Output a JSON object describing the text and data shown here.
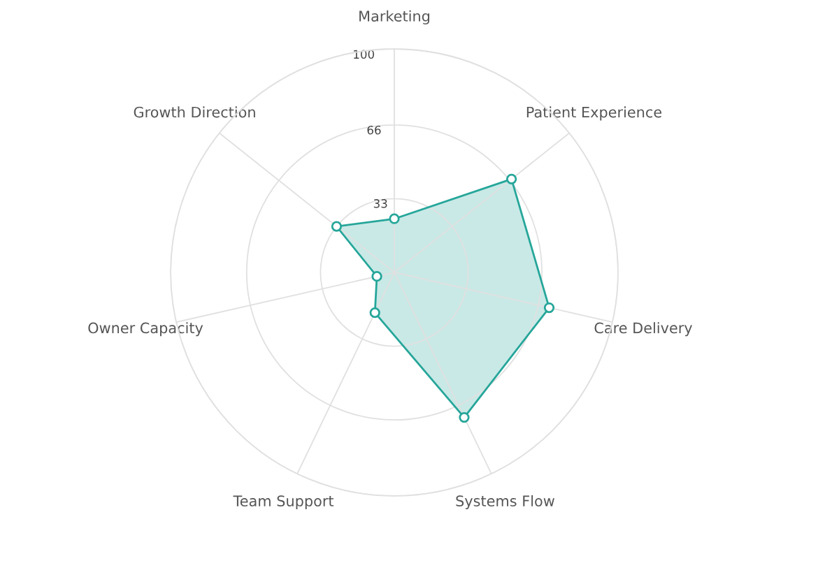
{
  "chart_data": {
    "type": "radar",
    "categories": [
      "Marketing",
      "Patient Experience",
      "Care Delivery",
      "Systems Flow",
      "Team Support",
      "Owner Capacity",
      "Growth Direction"
    ],
    "series": [
      {
        "color": "#26a69a",
        "values": [
          24,
          67,
          71,
          72,
          20,
          8,
          33
        ]
      }
    ],
    "ylim": [
      0,
      100
    ],
    "yticks": [
      33,
      66,
      100
    ],
    "grid": true,
    "marker": "circle"
  }
}
